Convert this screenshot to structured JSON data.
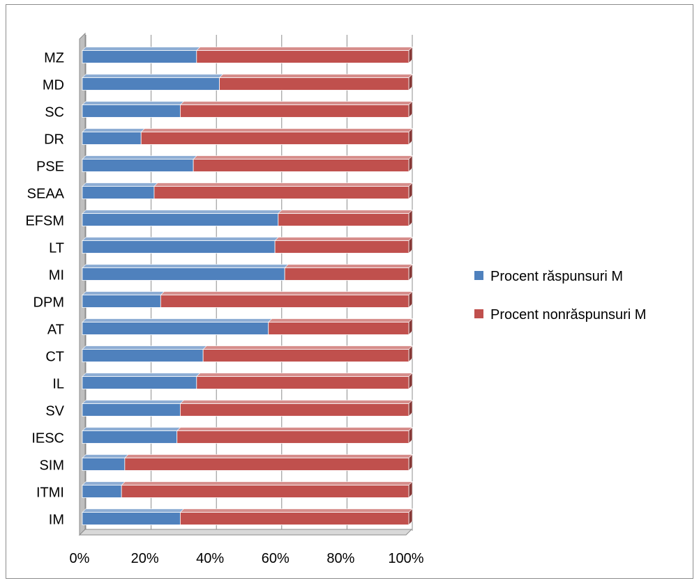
{
  "chart_data": {
    "type": "bar",
    "orientation": "horizontal",
    "stacked": "percent",
    "style": "3d",
    "title": "",
    "xlabel": "",
    "ylabel": "",
    "xlim": [
      0,
      100
    ],
    "x_ticks": [
      "0%",
      "20%",
      "40%",
      "60%",
      "80%",
      "100%"
    ],
    "grid": true,
    "legend_position": "right",
    "categories": [
      "MZ",
      "MD",
      "SC",
      "DR",
      "PSE",
      "SEAA",
      "EFSM",
      "LT",
      "MI",
      "DPM",
      "AT",
      "CT",
      "IL",
      "SV",
      "IESC",
      "SIM",
      "ITMI",
      "IM"
    ],
    "series": [
      {
        "name": "Procent răspunsuri M",
        "color": "#4f81bd",
        "values": [
          35,
          42,
          30,
          18,
          34,
          22,
          60,
          59,
          62,
          24,
          57,
          37,
          35,
          30,
          29,
          13,
          12,
          30
        ]
      },
      {
        "name": "Procent nonrăspunsuri M",
        "color": "#c0504d",
        "values": [
          65,
          58,
          70,
          82,
          66,
          78,
          40,
          41,
          38,
          76,
          43,
          63,
          65,
          70,
          71,
          87,
          88,
          70
        ]
      }
    ]
  }
}
